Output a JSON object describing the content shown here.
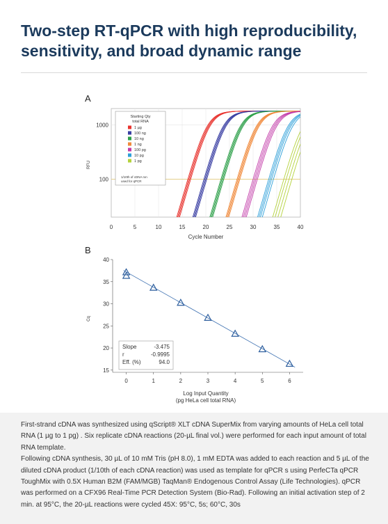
{
  "page": {
    "title": "Two-step RT-qPCR with high reproducibility, sensitivity, and broad dynamic range",
    "caption": [
      "First-strand cDNA was synthesized using qScript® XLT cDNA SuperMix from varying amounts of HeLa cell total RNA (1 µg to 1 pg) . Six replicate cDNA reactions (20-µL final vol.) were performed for each input amount of total RNA template.",
      "Following cDNA synthesis, 30 µL of 10 mM Tris (pH 8.0), 1 mM EDTA was added to each reaction and 5 µL of the diluted cDNA product (1/10th of each cDNA reaction) was used as template for qPCR s using PerfeCTa qPCR ToughMix with 0.5X Human B2M (FAM/MGB) TaqMan® Endogenous Control Assay (Life Technologies). qPCR was performed on a CFX96 Real-Time PCR Detection System (Bio-Rad). Following an initial activation step of 2 min. at 95°C, the 20-µL reactions were cycled 45X: 95°C, 5s; 60°C, 30s"
    ]
  },
  "chart_data": [
    {
      "panel": "A",
      "type": "line",
      "xlabel": "Cycle Number",
      "ylabel": "RFU",
      "xlim": [
        0,
        40
      ],
      "ylim_log": [
        20,
        2000
      ],
      "yscale": "log",
      "xticks": [
        0,
        5,
        10,
        15,
        20,
        25,
        30,
        35,
        40
      ],
      "yticks": [
        {
          "value": 100,
          "label": "100"
        },
        {
          "value": 1000,
          "label": "1000"
        }
      ],
      "threshold": 100,
      "plateau": 1800,
      "legend": {
        "title": [
          "Starting Qty",
          "total RNA"
        ],
        "placement": "top-left",
        "note": [
          "1/10th of cDNA rxn",
          "used for qPCR"
        ]
      },
      "series": [
        {
          "name": "1 µg",
          "color": "#e8342f",
          "ct": [
            16.2,
            16.4,
            16.6,
            16.8
          ]
        },
        {
          "name": "100 ng",
          "color": "#3a3fa3",
          "ct": [
            19.6,
            19.8,
            20.0,
            20.2
          ]
        },
        {
          "name": "10 ng",
          "color": "#2ea04a",
          "ct": [
            23.2,
            23.4,
            23.6,
            23.8
          ]
        },
        {
          "name": "1 ng",
          "color": "#f08a3c",
          "ct": [
            26.6,
            26.8,
            27.0,
            27.2
          ]
        },
        {
          "name": "100 pg",
          "color": "#c23aa8",
          "ct": [
            30.0,
            30.3,
            30.6,
            30.9
          ]
        },
        {
          "name": "10 pg",
          "color": "#2c9fd9",
          "ct": [
            33.3,
            33.6,
            33.9,
            34.3
          ]
        },
        {
          "name": "1 pg",
          "color": "#b4d23c",
          "ct": [
            36.5,
            37.0,
            37.6,
            38.2
          ]
        }
      ]
    },
    {
      "panel": "B",
      "type": "scatter",
      "xlabel": [
        "Log Input Quantity",
        "(pg HeLa cell total RNA)"
      ],
      "ylabel": "Cq",
      "xlim": [
        -0.5,
        6.5
      ],
      "ylim": [
        14.5,
        40
      ],
      "xticks": [
        0,
        1,
        2,
        3,
        4,
        5,
        6
      ],
      "yticks": [
        15,
        20,
        25,
        30,
        35,
        40
      ],
      "fit": {
        "slope": -3.475,
        "intercept": 37.2
      },
      "points": [
        {
          "x": 0,
          "y": 37.1
        },
        {
          "x": 0,
          "y": 36.3
        },
        {
          "x": 1,
          "y": 33.6
        },
        {
          "x": 2,
          "y": 30.2
        },
        {
          "x": 3,
          "y": 26.8
        },
        {
          "x": 4,
          "y": 23.2
        },
        {
          "x": 5,
          "y": 19.7
        },
        {
          "x": 6,
          "y": 16.4
        }
      ],
      "stats": [
        {
          "label": "Slope",
          "value": "-3.475"
        },
        {
          "label": "r",
          "value": "-0.9995"
        },
        {
          "label": "Eff. (%)",
          "value": "94.0"
        }
      ]
    }
  ]
}
